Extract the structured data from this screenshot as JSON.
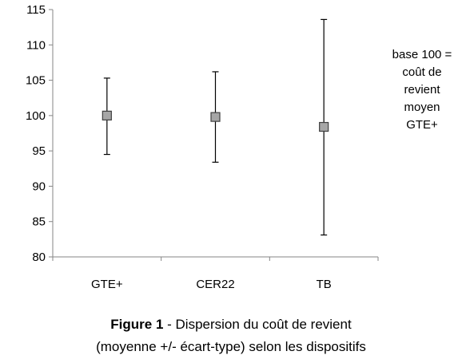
{
  "chart_data": {
    "type": "scatter",
    "categories": [
      "GTE+",
      "CER22",
      "TB"
    ],
    "series": [
      {
        "mean": [
          100,
          99.8,
          98.4
        ],
        "low": [
          94.5,
          93.4,
          83.1
        ],
        "high": [
          105.3,
          106.2,
          113.6
        ]
      }
    ],
    "ylim": [
      80,
      115
    ],
    "yticks": [
      "80",
      "85",
      "90",
      "95",
      "100",
      "105",
      "110",
      "115"
    ],
    "grid": false,
    "legend": "none"
  },
  "annotation": {
    "lines": [
      "base 100 =",
      "coût de",
      "revient",
      "moyen",
      "GTE+"
    ]
  },
  "caption": {
    "label": "Figure 1",
    "text_line1": " - Dispersion du coût de revient",
    "text_line2": "(moyenne +/- écart-type) selon les dispositifs"
  },
  "colors": {
    "marker_fill": "#a6a6a6",
    "marker_stroke": "#3f3f3f",
    "axis": "#868686",
    "errorbar": "#000000"
  }
}
